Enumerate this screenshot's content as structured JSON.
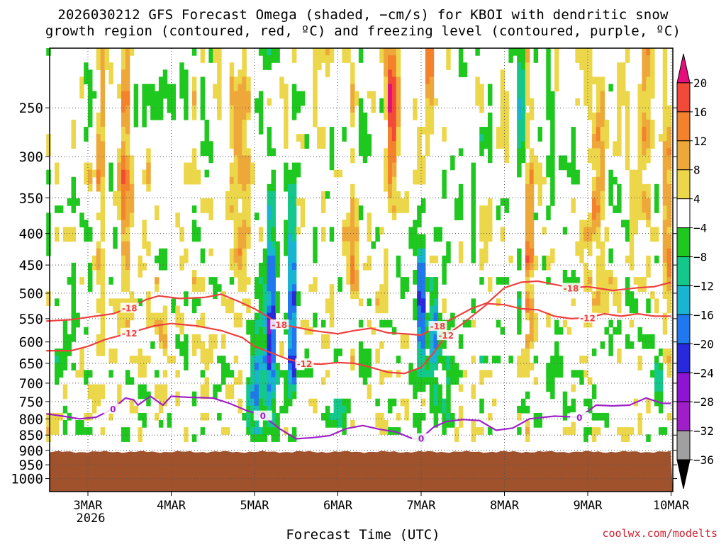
{
  "title": {
    "line1": "2026030212 GFS Forecast Omega (shaded, −cm/s) for KBOI with dendritic snow",
    "line2": "growth region (contoured, red, ºC) and freezing level (contoured, purple, ºC)"
  },
  "credit": "coolwx.com/modelts",
  "chart_data": {
    "type": "heatmap",
    "xlabel": "Forecast Time (UTC)",
    "x_ticks": [
      {
        "label": "3MAR",
        "sub": "2026",
        "day": 1
      },
      {
        "label": "4MAR",
        "day": 2
      },
      {
        "label": "5MAR",
        "day": 3
      },
      {
        "label": "6MAR",
        "day": 4
      },
      {
        "label": "7MAR",
        "day": 5
      },
      {
        "label": "8MAR",
        "day": 6
      },
      {
        "label": "9MAR",
        "day": 7
      },
      {
        "label": "10MAR",
        "day": 8
      }
    ],
    "x_range_days": [
      0.5,
      8.0
    ],
    "y_ticks": [
      250,
      300,
      350,
      400,
      450,
      500,
      550,
      600,
      650,
      700,
      750,
      800,
      850,
      900,
      950,
      1000
    ],
    "y_range_hpa": [
      1050,
      200
    ],
    "y_scale": "log-pressure",
    "grid": "dotted",
    "colorbar": {
      "labels": [
        "20",
        "16",
        "12",
        "8",
        "4",
        "−4",
        "−8",
        "−12",
        "−16",
        "−20",
        "−24",
        "−28",
        "−32",
        "−36"
      ],
      "colors": [
        "#e60e7c",
        "#f24a38",
        "#f4812c",
        "#eea83a",
        "#ecd64a",
        "#ffffff",
        "#1ec81e",
        "#14c88c",
        "#19b4d2",
        "#1f78f0",
        "#2828dc",
        "#8c14d2",
        "#a01ec8",
        "#a0a0a0",
        "#000000"
      ]
    },
    "terrain": {
      "pressure_hpa": 905,
      "color": "#a0522d"
    },
    "series": [
      {
        "name": "-18",
        "color": "#ee4040",
        "points": [
          [
            0.5,
            555
          ],
          [
            0.8,
            552
          ],
          [
            1.0,
            547
          ],
          [
            1.3,
            540
          ],
          [
            1.5,
            528
          ],
          [
            1.7,
            512
          ],
          [
            1.85,
            505
          ],
          [
            2.1,
            510
          ],
          [
            2.4,
            508
          ],
          [
            2.6,
            502
          ],
          [
            2.8,
            515
          ],
          [
            3.0,
            530
          ],
          [
            3.15,
            545
          ],
          [
            3.3,
            562
          ],
          [
            3.5,
            568
          ],
          [
            3.7,
            575
          ],
          [
            4.0,
            582
          ],
          [
            4.2,
            575
          ],
          [
            4.4,
            570
          ],
          [
            4.6,
            580
          ],
          [
            4.8,
            582
          ],
          [
            5.0,
            585
          ],
          [
            5.2,
            565
          ],
          [
            5.4,
            548
          ],
          [
            5.6,
            530
          ],
          [
            5.8,
            518
          ],
          [
            6.0,
            490
          ],
          [
            6.2,
            480
          ],
          [
            6.4,
            478
          ],
          [
            6.6,
            484
          ],
          [
            6.8,
            490
          ],
          [
            7.0,
            488
          ],
          [
            7.3,
            495
          ],
          [
            7.6,
            490
          ],
          [
            7.8,
            488
          ],
          [
            8.0,
            480
          ]
        ]
      },
      {
        "name": "-12",
        "color": "#ee4040",
        "points": [
          [
            0.5,
            620
          ],
          [
            0.8,
            620
          ],
          [
            1.0,
            610
          ],
          [
            1.2,
            595
          ],
          [
            1.5,
            580
          ],
          [
            1.8,
            565
          ],
          [
            2.0,
            560
          ],
          [
            2.3,
            565
          ],
          [
            2.6,
            575
          ],
          [
            2.85,
            590
          ],
          [
            3.0,
            610
          ],
          [
            3.2,
            625
          ],
          [
            3.4,
            640
          ],
          [
            3.6,
            650
          ],
          [
            3.8,
            652
          ],
          [
            4.0,
            648
          ],
          [
            4.2,
            650
          ],
          [
            4.4,
            660
          ],
          [
            4.6,
            672
          ],
          [
            4.8,
            675
          ],
          [
            5.0,
            660
          ],
          [
            5.15,
            625
          ],
          [
            5.3,
            585
          ],
          [
            5.5,
            560
          ],
          [
            5.8,
            520
          ],
          [
            6.0,
            522
          ],
          [
            6.2,
            530
          ],
          [
            6.4,
            532
          ],
          [
            6.6,
            545
          ],
          [
            6.8,
            550
          ],
          [
            7.0,
            548
          ],
          [
            7.2,
            540
          ],
          [
            7.4,
            545
          ],
          [
            7.6,
            540
          ],
          [
            7.8,
            545
          ],
          [
            8.0,
            545
          ]
        ]
      },
      {
        "name": "0",
        "color": "#a020c8",
        "points": [
          [
            0.5,
            785
          ],
          [
            0.7,
            792
          ],
          [
            0.9,
            800
          ],
          [
            1.1,
            795
          ],
          [
            1.3,
            770
          ],
          [
            1.45,
            740
          ],
          [
            1.55,
            745
          ],
          [
            1.6,
            760
          ],
          [
            1.75,
            735
          ],
          [
            1.9,
            760
          ],
          [
            2.0,
            735
          ],
          [
            2.2,
            738
          ],
          [
            2.5,
            740
          ],
          [
            2.7,
            755
          ],
          [
            2.9,
            775
          ],
          [
            3.1,
            790
          ],
          [
            3.3,
            830
          ],
          [
            3.5,
            862
          ],
          [
            3.7,
            858
          ],
          [
            3.9,
            852
          ],
          [
            4.1,
            830
          ],
          [
            4.3,
            820
          ],
          [
            4.5,
            832
          ],
          [
            4.7,
            840
          ],
          [
            4.9,
            862
          ],
          [
            5.0,
            860
          ],
          [
            5.15,
            825
          ],
          [
            5.3,
            808
          ],
          [
            5.5,
            802
          ],
          [
            5.7,
            805
          ],
          [
            5.9,
            835
          ],
          [
            6.1,
            828
          ],
          [
            6.3,
            800
          ],
          [
            6.6,
            792
          ],
          [
            6.9,
            795
          ],
          [
            7.1,
            760
          ],
          [
            7.3,
            762
          ],
          [
            7.5,
            760
          ],
          [
            7.7,
            740
          ],
          [
            7.9,
            755
          ],
          [
            8.0,
            755
          ]
        ]
      }
    ],
    "contour_label_values": [
      "-18",
      "-12",
      "0"
    ]
  }
}
